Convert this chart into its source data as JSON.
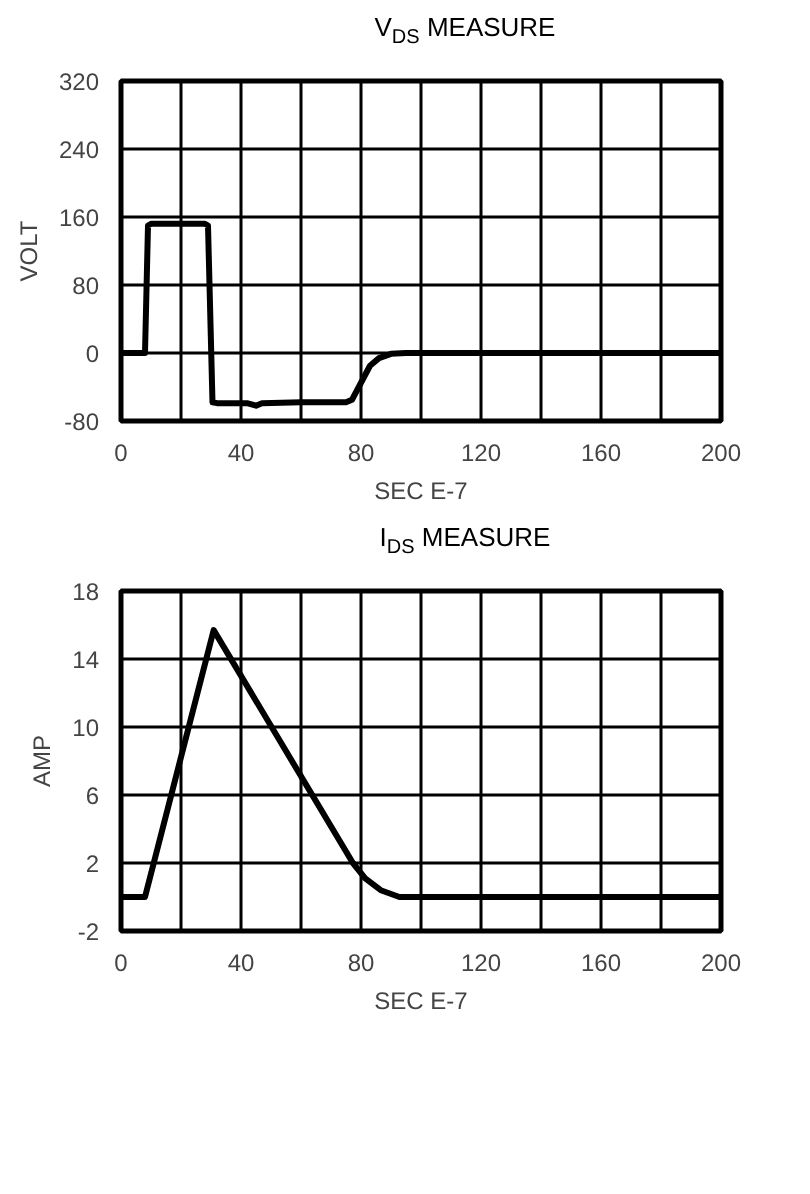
{
  "chart_data": [
    {
      "type": "line",
      "title": "V$_{DS}$ MEASURE",
      "xlabel": "SEC E-7",
      "ylabel": "VOLT",
      "series": [
        {
          "color": "#000000",
          "x": [
            0,
            8,
            9,
            10,
            28,
            29,
            30.5,
            32,
            42,
            45,
            47,
            60,
            75,
            77,
            80,
            83,
            86,
            90,
            95,
            200
          ],
          "values": [
            0,
            0,
            150,
            152,
            152,
            150,
            -58,
            -59,
            -59,
            -62,
            -59,
            -58,
            -58,
            -55,
            -35,
            -15,
            -6,
            -1,
            0,
            0
          ]
        }
      ],
      "xlim": [
        0,
        200
      ],
      "xticks": [
        0,
        {
          "value": 20,
          "label": null
        },
        40,
        {
          "value": 60,
          "label": null
        },
        80,
        {
          "value": 100,
          "label": null
        },
        120,
        {
          "value": 140,
          "label": null
        },
        160,
        {
          "value": 180,
          "label": null
        },
        200
      ],
      "ylim": [
        -80,
        320
      ],
      "yticks": [
        -80,
        0,
        80,
        160,
        240,
        320
      ],
      "grid": true,
      "line_style": "solid",
      "marker": "none"
    },
    {
      "type": "line",
      "title": "I$_{DS}$ MEASURE",
      "xlabel": "SEC E-7",
      "ylabel": "AMP",
      "series": [
        {
          "color": "#000000",
          "x": [
            0,
            8,
            30.9,
            77.3,
            81.4,
            86.6,
            92.8,
            200
          ],
          "values": [
            0,
            0,
            15.7,
            2,
            1.1,
            0.4,
            0,
            0
          ]
        }
      ],
      "xlim": [
        0,
        200
      ],
      "xticks": [
        0,
        {
          "value": 20,
          "label": null
        },
        40,
        {
          "value": 60,
          "label": null
        },
        80,
        {
          "value": 100,
          "label": null
        },
        120,
        {
          "value": 140,
          "label": null
        },
        160,
        {
          "value": 180,
          "label": null
        },
        200
      ],
      "ylim": [
        -2,
        18
      ],
      "yticks": [
        -2,
        2,
        6,
        10,
        14,
        18
      ],
      "grid": true,
      "line_style": "solid",
      "marker": "none"
    }
  ]
}
